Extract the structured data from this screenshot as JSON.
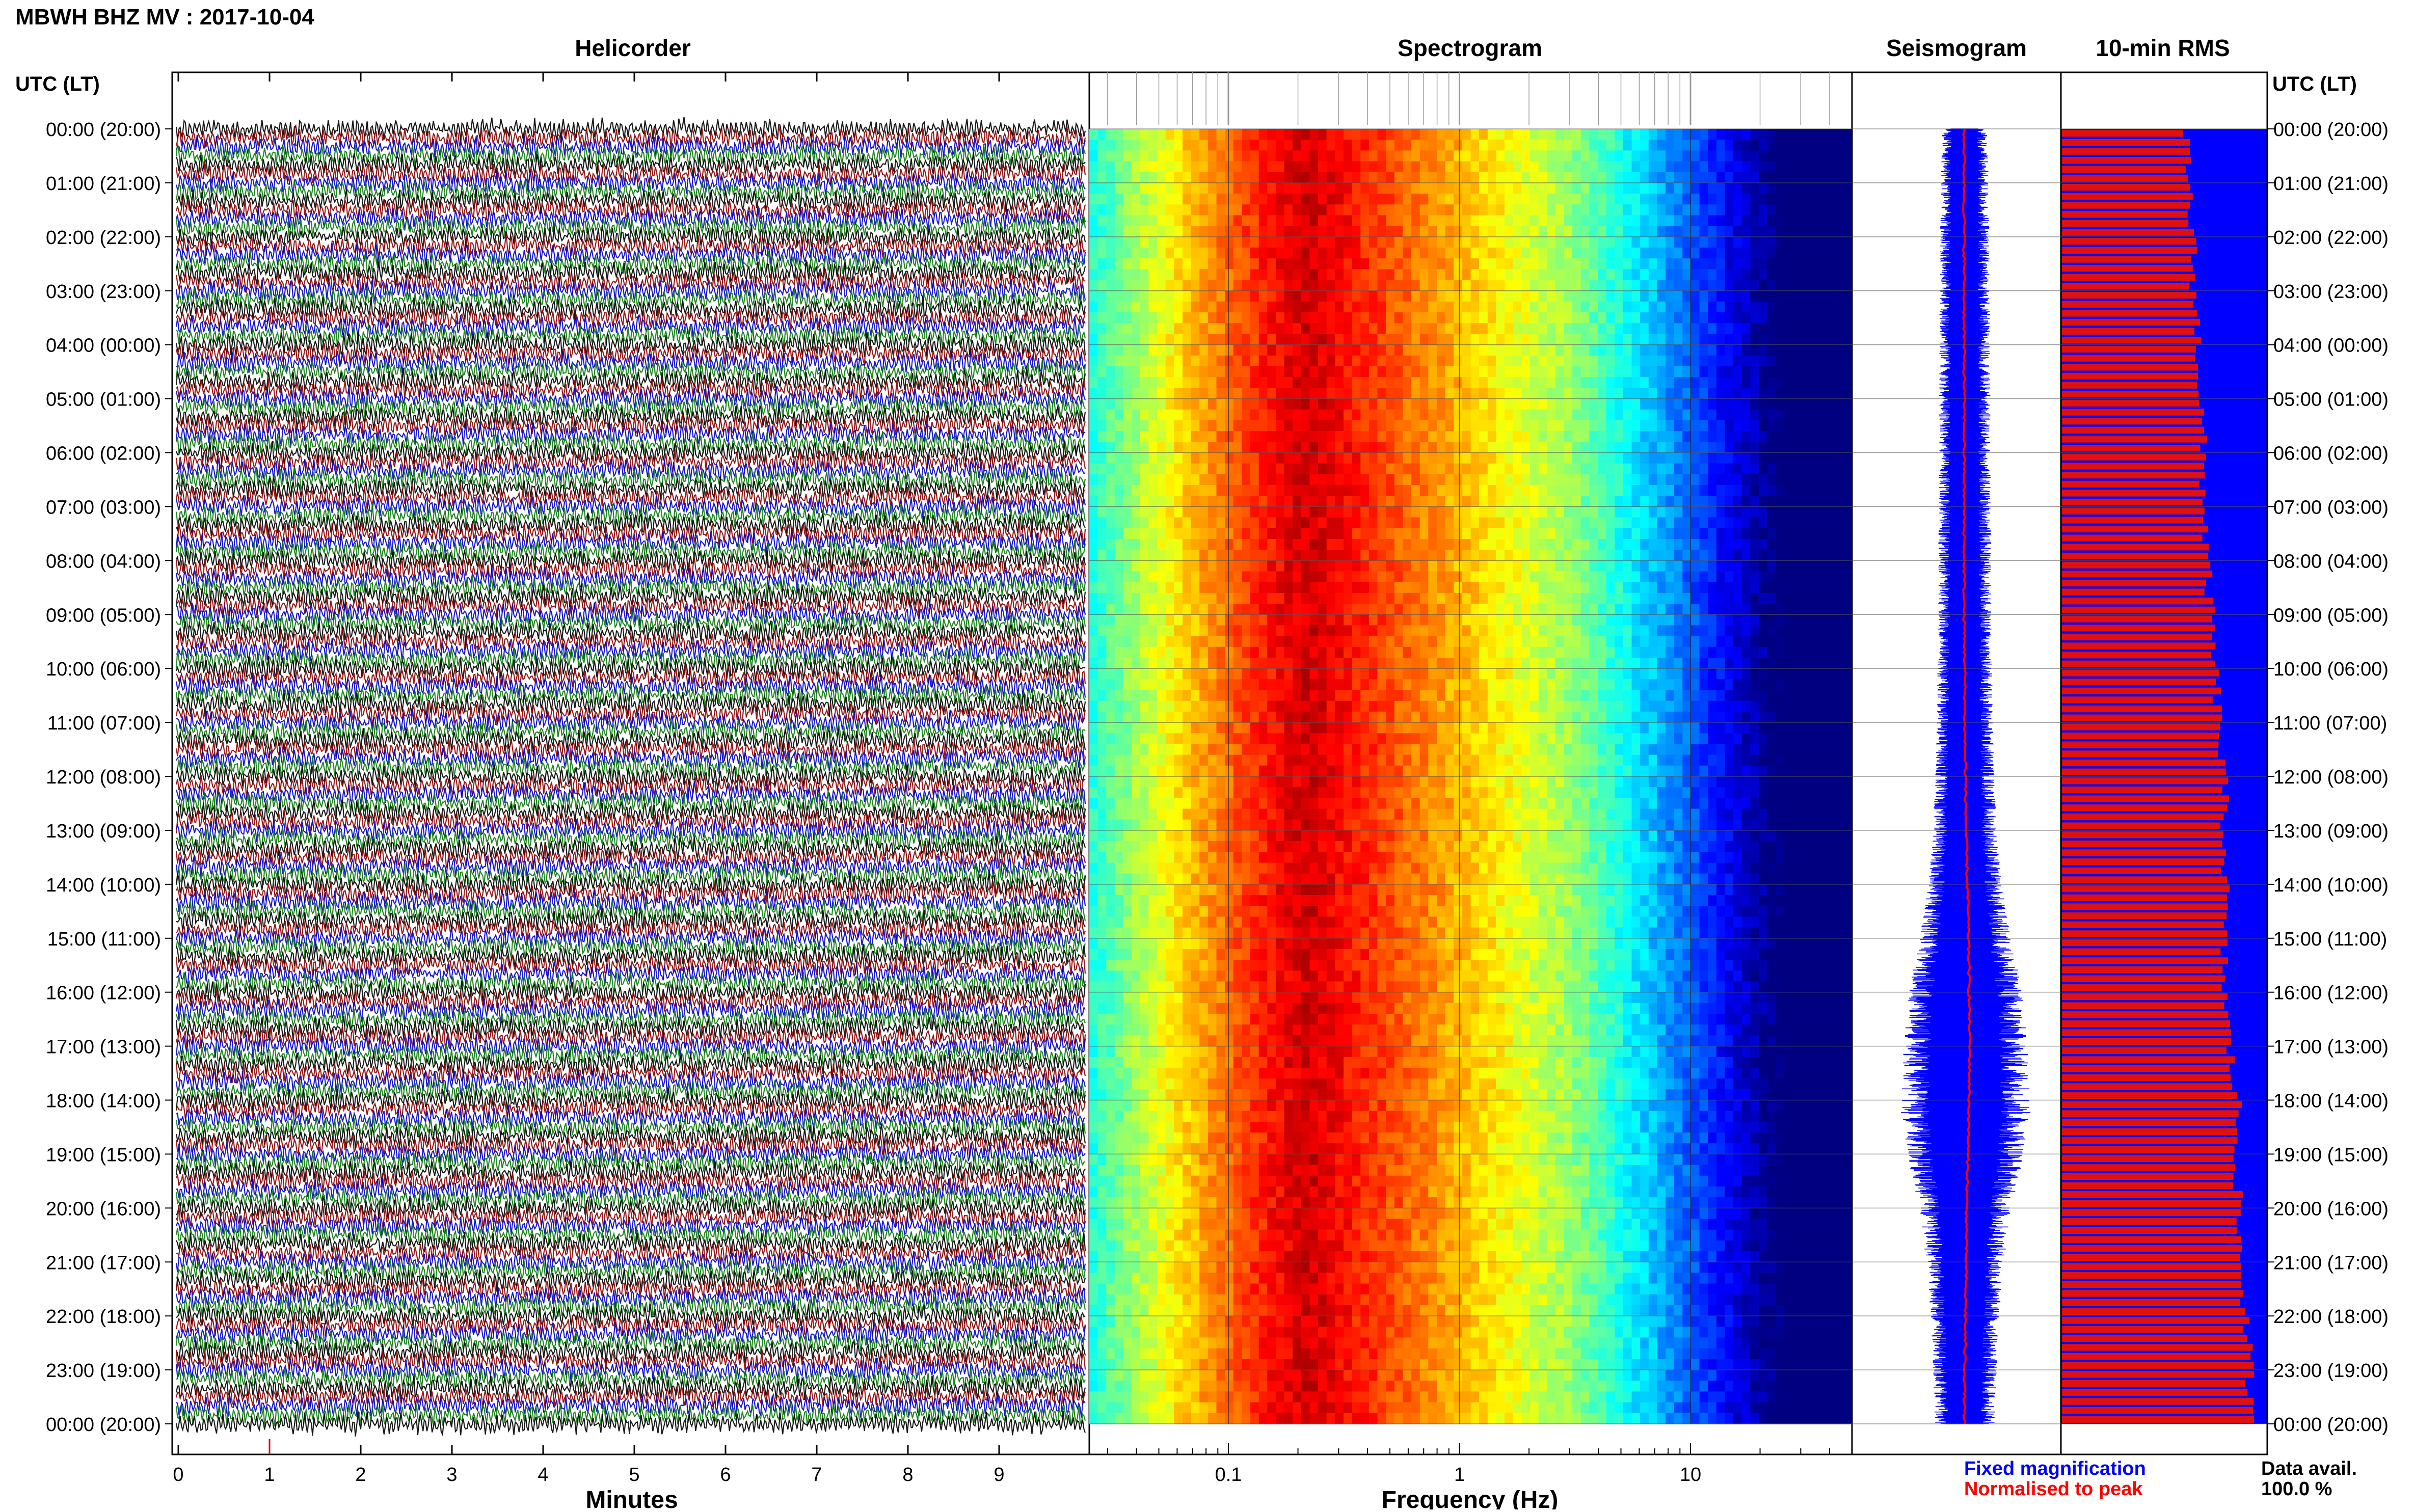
{
  "header": {
    "title": "MBWH BHZ MV : 2017-10-04",
    "utc_label_left": "UTC (LT)",
    "utc_label_right": "UTC (LT)"
  },
  "panels": {
    "helicorder": "Helicorder",
    "spectrogram": "Spectrogram",
    "seismogram": "Seismogram",
    "rms": "10-min RMS"
  },
  "legend": {
    "fixed": "Fixed magnification",
    "normalised": "Normalised to peak",
    "data_avail_label": "Data avail.",
    "data_avail_value": "100.0 %"
  },
  "colors": {
    "trace_black": "#000000",
    "trace_red": "#8b0000",
    "trace_blue": "#0000cc",
    "trace_green": "#0a7a0a",
    "seismo_fixed": "#0000ff",
    "seismo_norm": "#ff0000",
    "rms_bar": "#e01010",
    "rms_bg": "#0000ff",
    "legend_fixed": "#0000ff",
    "legend_norm": "#ff0000"
  },
  "chart_data": [
    {
      "type": "line",
      "title": "Helicorder",
      "xlabel": "Minutes",
      "x_ticks": [
        "0",
        "1",
        "2",
        "3",
        "4",
        "5",
        "6",
        "7",
        "8",
        "9"
      ],
      "xlim": [
        0,
        10
      ],
      "row_labels": [
        "00:00 (20:00)",
        "01:00 (21:00)",
        "02:00 (22:00)",
        "03:00 (23:00)",
        "04:00 (00:00)",
        "05:00 (01:00)",
        "06:00 (02:00)",
        "07:00 (03:00)",
        "08:00 (04:00)",
        "09:00 (05:00)",
        "10:00 (06:00)",
        "11:00 (07:00)",
        "12:00 (08:00)",
        "13:00 (09:00)",
        "14:00 (10:00)",
        "15:00 (11:00)",
        "16:00 (12:00)",
        "17:00 (13:00)",
        "18:00 (14:00)",
        "19:00 (15:00)",
        "20:00 (16:00)",
        "21:00 (17:00)",
        "22:00 (18:00)",
        "23:00 (19:00)",
        "00:00 (20:00)"
      ],
      "lines_per_hour": 6,
      "trace_color_cycle": [
        "black",
        "red",
        "blue",
        "green"
      ]
    },
    {
      "type": "heatmap",
      "title": "Spectrogram",
      "xlabel": "Frequency (Hz)",
      "x_scale": "log",
      "xlim": [
        0.025,
        50
      ],
      "x_ticks": [
        "0.1",
        "1",
        "10"
      ],
      "colormap": "jet",
      "dominant_band_hz": [
        0.15,
        0.35
      ]
    },
    {
      "type": "line",
      "title": "Seismogram",
      "series": [
        {
          "name": "Fixed magnification",
          "amplitude_by_hour": [
            0.5,
            0.52,
            0.54,
            0.55,
            0.55,
            0.56,
            0.56,
            0.57,
            0.58,
            0.58,
            0.6,
            0.62,
            0.65,
            0.7,
            0.8,
            1.0,
            1.25,
            1.35,
            1.45,
            1.3,
            1.0,
            0.85,
            0.75,
            0.7,
            0.65
          ]
        },
        {
          "name": "Normalised to peak",
          "offset_by_hour": [
            0,
            0,
            0,
            0,
            0,
            0,
            0,
            0,
            0,
            0,
            0.01,
            0.01,
            0.02,
            0.03,
            0.05,
            0.07,
            0.08,
            0.09,
            0.08,
            0.06,
            0.04,
            0.03,
            0.02,
            0.01,
            0
          ]
        }
      ]
    },
    {
      "type": "bar",
      "title": "10-min RMS",
      "bars_per_hour": 6,
      "relative_rms_by_hour": [
        0.6,
        0.62,
        0.64,
        0.65,
        0.67,
        0.68,
        0.69,
        0.7,
        0.71,
        0.73,
        0.75,
        0.77,
        0.79,
        0.8,
        0.8,
        0.79,
        0.8,
        0.82,
        0.86,
        0.86,
        0.86,
        0.88,
        0.9,
        0.92,
        0.92
      ]
    }
  ]
}
